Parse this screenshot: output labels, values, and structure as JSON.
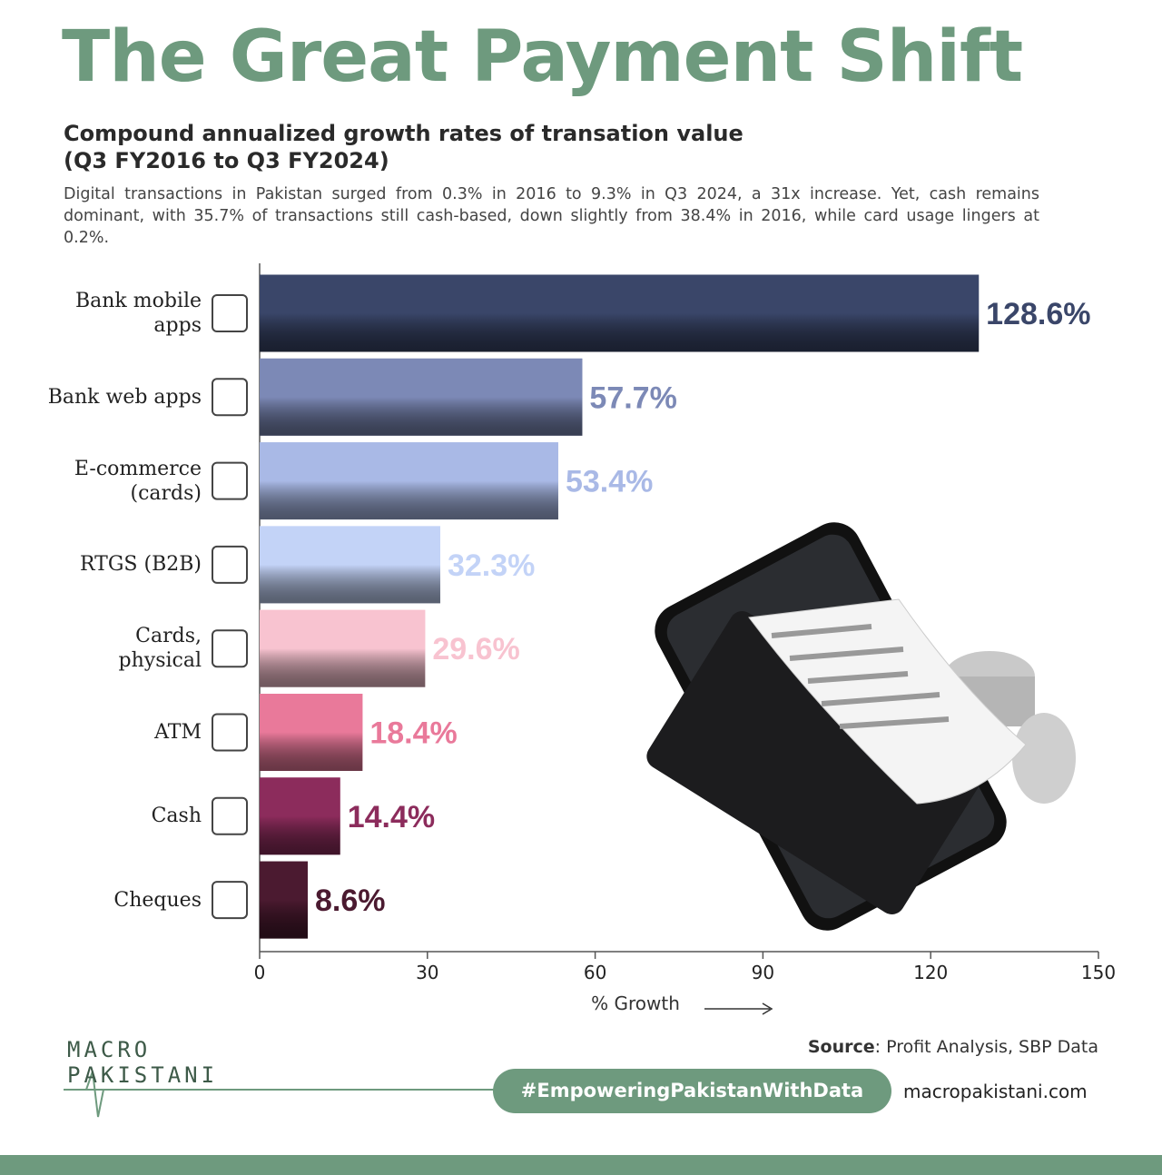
{
  "chart_data": {
    "type": "bar",
    "orientation": "horizontal",
    "title": "The Great Payment Shift",
    "subtitle": "Compound annualized growth rates of transation value (Q3 FY2016 to Q3 FY2024)",
    "description": "Digital transactions in Pakistan surged from 0.3% in 2016 to 9.3% in Q3 2024, a 31x increase. Yet, cash remains dominant, with 35.7% of transactions still cash-based, down slightly from 38.4% in 2016, while card usage lingers at 0.2%.",
    "categories": [
      "Bank mobile apps",
      "Bank web apps",
      "E-commerce (cards)",
      "RTGS (B2B)",
      "Cards, physical",
      "ATM",
      "Cash",
      "Cheques"
    ],
    "values": [
      128.6,
      57.7,
      53.4,
      32.3,
      29.6,
      18.4,
      14.4,
      8.6
    ],
    "value_labels": [
      "128.6%",
      "57.7%",
      "53.4%",
      "32.3%",
      "29.6%",
      "18.4%",
      "14.4%",
      "8.6%"
    ],
    "colors": [
      "#3a4669",
      "#7c89b6",
      "#a9b9e6",
      "#c3d3f7",
      "#f8c3d0",
      "#e9799a",
      "#8c2c5c",
      "#4b1a30"
    ],
    "xlim": [
      0,
      150
    ],
    "xticks": [
      0,
      30,
      60,
      90,
      120,
      150
    ],
    "xlabel": "% Growth"
  },
  "footer": {
    "logo_top": "MACRO",
    "logo_bottom": "PAKISTANI",
    "source_label": "Source",
    "source": ": Profit Analysis, SBP Data",
    "hashtag": "#EmpoweringPakistanWithData",
    "website": "macropakistani.com"
  }
}
